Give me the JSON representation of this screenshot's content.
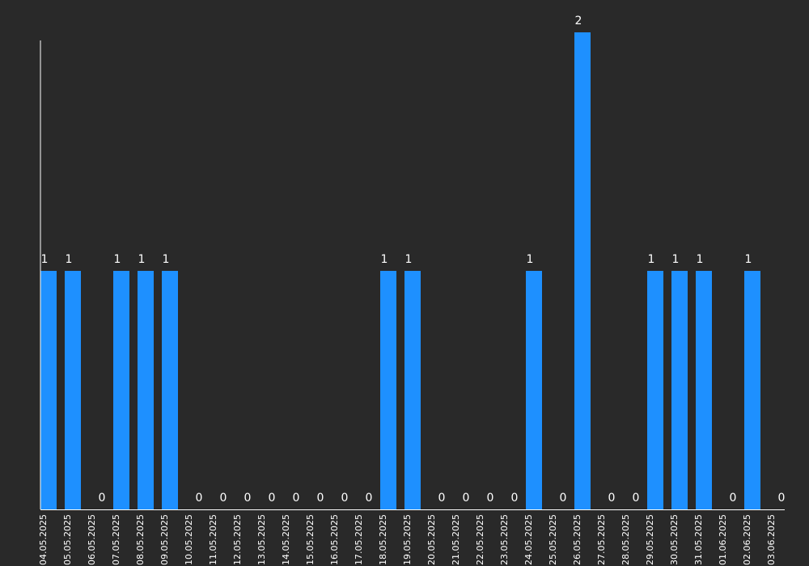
{
  "chart_data": {
    "type": "bar",
    "categories": [
      "04.05.2025",
      "05.05.2025",
      "06.05.2025",
      "07.05.2025",
      "08.05.2025",
      "09.05.2025",
      "10.05.2025",
      "11.05.2025",
      "12.05.2025",
      "13.05.2025",
      "14.05.2025",
      "15.05.2025",
      "16.05.2025",
      "17.05.2025",
      "18.05.2025",
      "19.05.2025",
      "20.05.2025",
      "21.05.2025",
      "22.05.2025",
      "23.05.2025",
      "24.05.2025",
      "25.05.2025",
      "26.05.2025",
      "27.05.2025",
      "28.05.2025",
      "29.05.2025",
      "30.05.2025",
      "31.05.2025",
      "01.06.2025",
      "02.06.2025",
      "03.06.2025"
    ],
    "values": [
      1,
      1,
      0,
      1,
      1,
      1,
      0,
      0,
      0,
      0,
      0,
      0,
      0,
      0,
      1,
      1,
      0,
      0,
      0,
      0,
      1,
      0,
      2,
      0,
      0,
      1,
      1,
      1,
      0,
      1,
      0
    ],
    "ylim": [
      0,
      2
    ],
    "grid": false,
    "data_labels": true,
    "colors": {
      "background": "#292929",
      "bar": "#1e90ff",
      "axis": "#ffffff",
      "text": "#ffffff"
    }
  }
}
